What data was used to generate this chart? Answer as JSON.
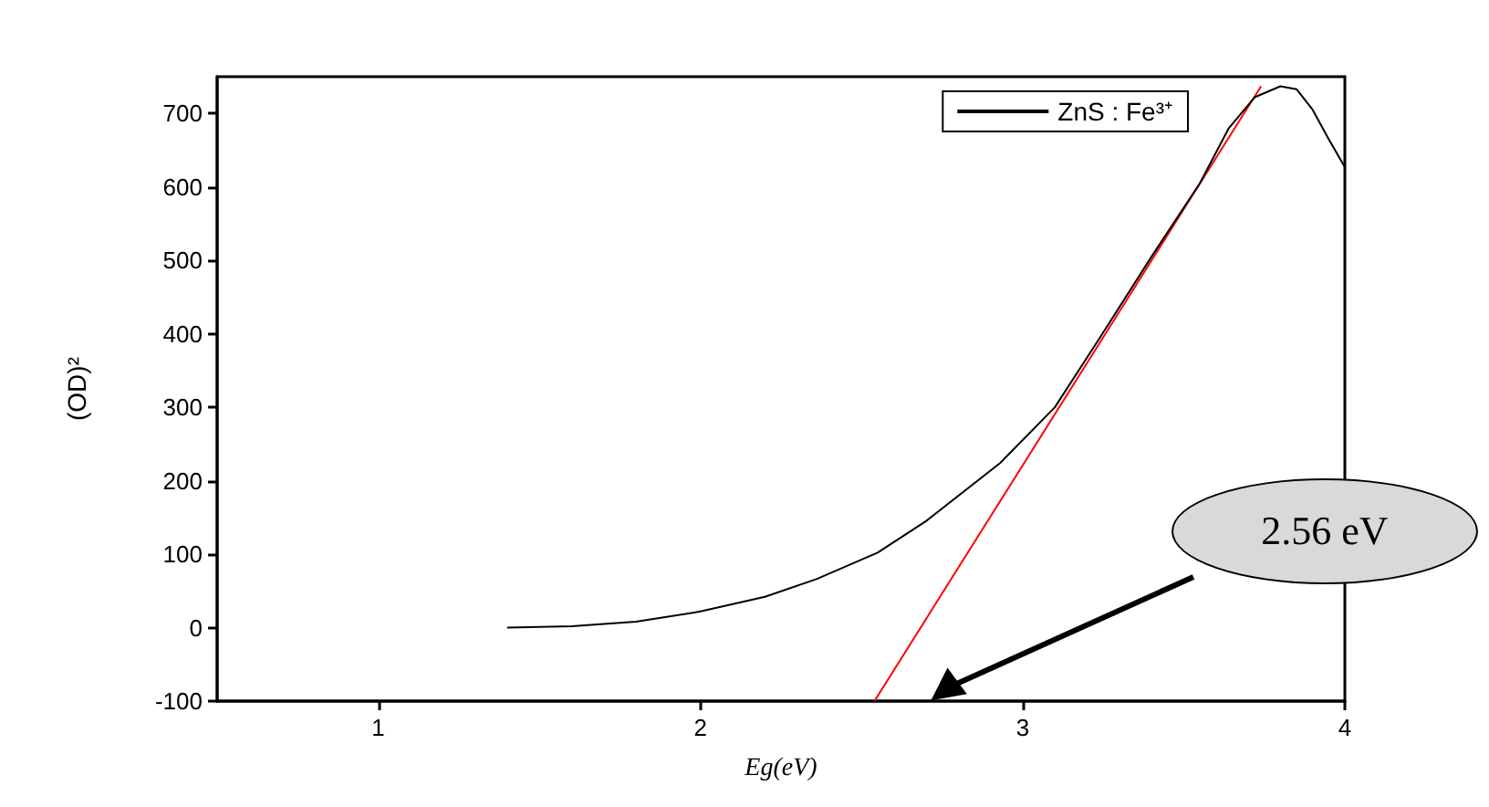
{
  "chart_data": {
    "type": "line",
    "xlabel": "Eg(eV)",
    "ylabel": "(OD)²",
    "xlim": [
      0.5,
      4
    ],
    "xticks": [
      1,
      2,
      3,
      4
    ],
    "ylim": [
      -100,
      750
    ],
    "yticks": [
      -100,
      0,
      100,
      200,
      300,
      400,
      500,
      600,
      700
    ],
    "grid": false,
    "legend": "top right",
    "marker": "none",
    "line_style": "solid",
    "series": [
      {
        "name": "ZnS : Fe³⁺",
        "color": "#000000",
        "x": [
          1.4,
          1.6,
          1.8,
          2.0,
          2.2,
          2.36,
          2.55,
          2.7,
          2.93,
          3.1,
          3.24,
          3.4,
          3.55,
          3.64,
          3.72,
          3.8,
          3.85,
          3.9,
          3.95,
          4.0
        ],
        "values": [
          0,
          2,
          8,
          22,
          42,
          66,
          102,
          145,
          224,
          300,
          395,
          505,
          605,
          680,
          722,
          737,
          733,
          705,
          665,
          627
        ]
      },
      {
        "type": "line",
        "color": "#ff0000",
        "x": [
          2.54,
          3.74
        ],
        "values": [
          -100,
          737
        ]
      }
    ],
    "annotations": [
      "2.56 eV"
    ]
  }
}
